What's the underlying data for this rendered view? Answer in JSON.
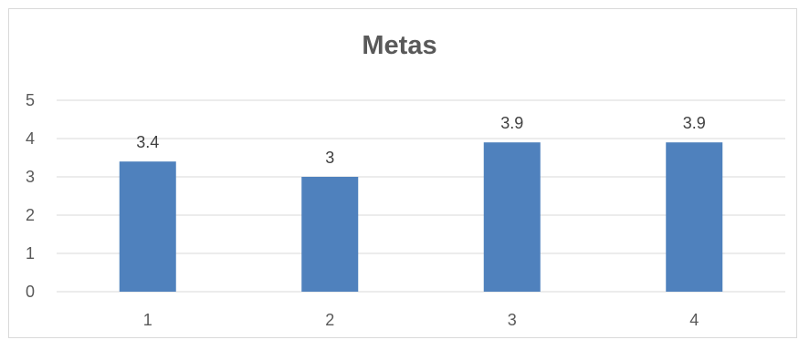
{
  "chart_data": {
    "type": "bar",
    "title": "Metas",
    "categories": [
      "1",
      "2",
      "3",
      "4"
    ],
    "values": [
      3.4,
      3,
      3.9,
      3.9
    ],
    "data_labels": [
      "3.4",
      "3",
      "3.9",
      "3.9"
    ],
    "xlabel": "",
    "ylabel": "",
    "ylim": [
      0,
      5
    ],
    "yticks": [
      "0",
      "1",
      "2",
      "3",
      "4",
      "5"
    ],
    "grid": true,
    "legend": "none",
    "bar_color": "#4f81bd",
    "grid_color": "#d9d9d9"
  }
}
